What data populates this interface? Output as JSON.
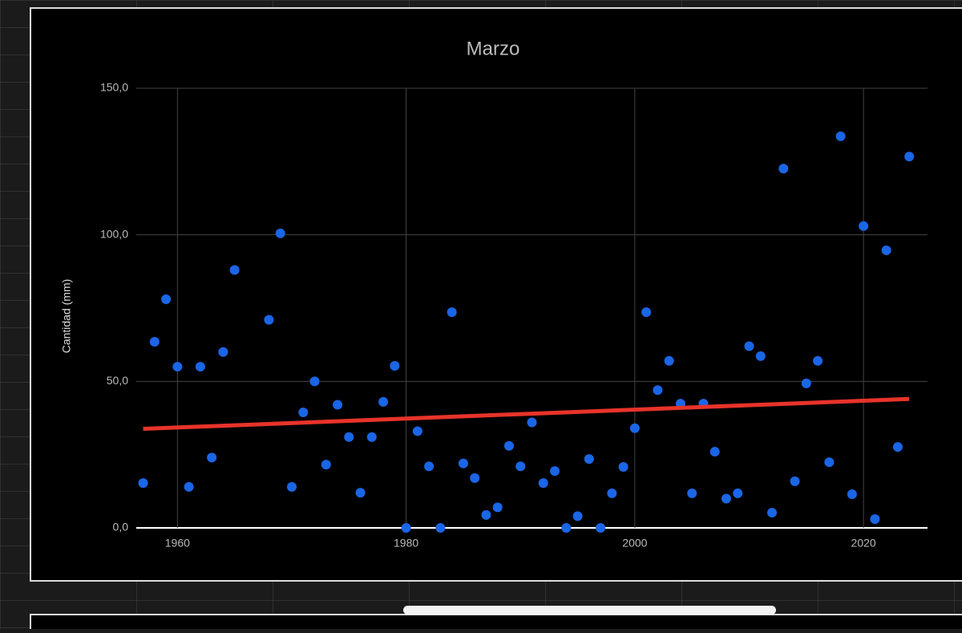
{
  "chart_data": {
    "type": "scatter",
    "title": "Marzo",
    "y_label": "Cantidad (mm)",
    "x": [
      1957,
      1958,
      1959,
      1960,
      1961,
      1962,
      1963,
      1964,
      1965,
      1968,
      1969,
      1970,
      1971,
      1972,
      1973,
      1974,
      1975,
      1976,
      1977,
      1978,
      1979,
      1980,
      1981,
      1982,
      1983,
      1984,
      1985,
      1986,
      1987,
      1988,
      1989,
      1990,
      1991,
      1992,
      1993,
      1994,
      1995,
      1996,
      1997,
      1998,
      1999,
      2000,
      2001,
      2002,
      2003,
      2004,
      2005,
      2006,
      2007,
      2008,
      2009,
      2010,
      2011,
      2012,
      2013,
      2014,
      2015,
      2016,
      2017,
      2018,
      2019,
      2020,
      2021,
      2022,
      2023,
      2024
    ],
    "values": [
      15.3,
      63.5,
      78,
      55,
      14,
      55,
      24,
      60,
      88,
      71,
      100.5,
      14,
      39.4,
      50,
      21.6,
      42,
      31,
      12,
      31,
      43,
      55.3,
      0,
      33,
      21,
      0,
      73.6,
      22,
      17,
      4.4,
      7,
      28,
      21,
      36,
      15.3,
      19.4,
      0,
      4,
      23.5,
      0,
      11.8,
      20.8,
      34,
      73.6,
      47,
      57,
      42.4,
      11.8,
      42.4,
      26,
      10,
      11.8,
      62,
      58.6,
      5.2,
      122.6,
      15.9,
      49.3,
      57,
      22.4,
      133.6,
      11.5,
      103,
      3,
      94.7,
      27.6,
      126.7
    ],
    "color": "#1a66e6",
    "trendline": {
      "color": "#e8332a",
      "x": [
        1957,
        2024
      ],
      "values": [
        33.8,
        44.0
      ]
    },
    "xlim": [
      1956.4,
      2025.6
    ],
    "ylim": [
      0,
      150
    ],
    "xticks": [
      1960,
      1980,
      2000,
      2020
    ],
    "yticks": [
      {
        "value": 0,
        "label": "0,0"
      },
      {
        "value": 50,
        "label": "50,0"
      },
      {
        "value": 100,
        "label": "100,0"
      },
      {
        "value": 150,
        "label": "150,0"
      }
    ],
    "grid": true
  }
}
